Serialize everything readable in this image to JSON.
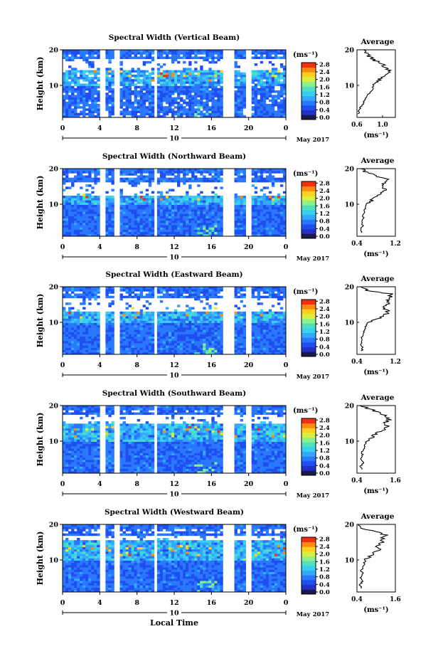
{
  "colors": {
    "colormap": [
      "#1a1a4a",
      "#2030c8",
      "#1f4ff0",
      "#2a78ff",
      "#34a8ff",
      "#38d0f0",
      "#4ee0c0",
      "#8ff08a",
      "#d8f040",
      "#ffd020",
      "#ff8a10",
      "#f03010"
    ],
    "line": "#000000",
    "gap": "#ffffff"
  },
  "shared": {
    "x_ticks": [
      "0",
      "4",
      "8",
      "12",
      "16",
      "20",
      "0"
    ],
    "x_ticks_overlap": [
      "0",
      "4",
      "8",
      "12",
      "16",
      "20",
      "0"
    ],
    "y_ticks": [
      "20",
      "10"
    ],
    "ylabel": "Height (km)",
    "colorbar_unit": "(ms⁻¹)",
    "colorbar_ticks": [
      "2.8",
      "2.4",
      "2.0",
      "1.6",
      "1.2",
      "0.8",
      "0.4",
      "0.0"
    ],
    "date_day": "10",
    "date_label": "May 2017",
    "avg_title": "Average",
    "avg_xlabel": "(ms⁻¹)",
    "xlabel": "Local Time"
  },
  "chart_data": [
    {
      "type": "heatmap",
      "title": "Spectral Width (Vertical Beam)",
      "xlabel": "",
      "ylabel": "Height (km)",
      "xlim": [
        0,
        24
      ],
      "ylim": [
        1,
        20
      ],
      "clim": [
        0.0,
        3.0
      ],
      "gaps_hours": [
        4.3,
        5.9,
        10.0,
        17.6,
        18.2,
        20.0
      ],
      "upper_gap_km": [
        14.0,
        17.5
      ],
      "average_profile": {
        "xlim": [
          0.6,
          1.2
        ],
        "xticks": [
          "0.6",
          "1.0"
        ],
        "height_km": [
          2,
          3,
          4,
          5,
          6,
          7,
          8,
          9,
          10,
          11,
          12,
          13,
          14,
          15,
          16,
          17,
          18,
          19,
          20
        ],
        "width": [
          0.62,
          0.64,
          0.66,
          0.7,
          0.72,
          0.76,
          0.8,
          0.84,
          0.86,
          0.92,
          0.98,
          1.02,
          1.12,
          1.04,
          1.0,
          0.88,
          0.8,
          0.78,
          0.7
        ]
      }
    },
    {
      "type": "heatmap",
      "title": "Spectral Width (Northward Beam)",
      "xlabel": "",
      "ylabel": "Height (km)",
      "xlim": [
        0,
        24
      ],
      "ylim": [
        1,
        20
      ],
      "clim": [
        0.0,
        3.0
      ],
      "gaps_hours": [
        4.3,
        5.9,
        10.0,
        17.6,
        18.2,
        20.0
      ],
      "upper_gap_km": [
        12.5,
        16.5
      ],
      "average_profile": {
        "xlim": [
          0.4,
          1.2
        ],
        "xticks": [
          "0.4",
          "1.2"
        ],
        "height_km": [
          2,
          3,
          4,
          5,
          6,
          7,
          8,
          9,
          10,
          11,
          12,
          13,
          14,
          15,
          16,
          17,
          18,
          19,
          20
        ],
        "width": [
          0.5,
          0.48,
          0.52,
          0.5,
          0.54,
          0.52,
          0.56,
          0.58,
          0.6,
          0.7,
          0.78,
          0.92,
          0.98,
          0.9,
          0.96,
          1.02,
          0.8,
          0.6,
          0.48
        ]
      }
    },
    {
      "type": "heatmap",
      "title": "Spectral Width (Eastward Beam)",
      "xlabel": "",
      "ylabel": "Height (km)",
      "xlim": [
        0,
        24
      ],
      "ylim": [
        1,
        20
      ],
      "clim": [
        0.0,
        3.0
      ],
      "gaps_hours": [
        4.3,
        5.9,
        10.0,
        17.6,
        18.2,
        20.0
      ],
      "upper_gap_km": [
        13.0,
        17.0
      ],
      "average_profile": {
        "xlim": [
          0.4,
          1.2
        ],
        "xticks": [
          "0.4",
          "1.2"
        ],
        "height_km": [
          2,
          3,
          4,
          5,
          6,
          7,
          8,
          9,
          10,
          11,
          12,
          13,
          14,
          15,
          16,
          17,
          18,
          19,
          20
        ],
        "width": [
          0.5,
          0.52,
          0.48,
          0.52,
          0.5,
          0.54,
          0.56,
          0.58,
          0.62,
          0.8,
          1.0,
          1.04,
          0.96,
          1.02,
          1.06,
          1.08,
          1.12,
          0.6,
          0.48
        ]
      }
    },
    {
      "type": "heatmap",
      "title": "Spectral Width (Southward Beam)",
      "xlabel": "",
      "ylabel": "Height (km)",
      "xlim": [
        0,
        24
      ],
      "ylim": [
        1,
        20
      ],
      "clim": [
        0.0,
        3.0
      ],
      "gaps_hours": [
        4.3,
        5.9,
        10.0,
        17.6,
        18.2,
        20.0
      ],
      "upper_gap_km": [
        15.0,
        17.5
      ],
      "average_profile": {
        "xlim": [
          0.4,
          1.6
        ],
        "xticks": [
          "0.4",
          "1.6"
        ],
        "height_km": [
          2,
          3,
          4,
          5,
          6,
          7,
          8,
          9,
          10,
          11,
          12,
          13,
          14,
          15,
          16,
          17,
          18,
          19,
          20
        ],
        "width": [
          0.56,
          0.52,
          0.6,
          0.54,
          0.58,
          0.56,
          0.62,
          0.64,
          0.7,
          0.86,
          1.0,
          1.2,
          1.36,
          1.24,
          1.4,
          1.3,
          1.1,
          0.8,
          0.5
        ]
      }
    },
    {
      "type": "heatmap",
      "title": "Spectral Width (Westward Beam)",
      "xlabel": "Local Time",
      "ylabel": "Height (km)",
      "xlim": [
        0,
        24
      ],
      "ylim": [
        1,
        20
      ],
      "clim": [
        0.0,
        3.0
      ],
      "gaps_hours": [
        4.3,
        5.9,
        10.0,
        17.6,
        18.2,
        20.0
      ],
      "upper_gap_km": [
        15.5,
        17.0
      ],
      "average_profile": {
        "xlim": [
          0.4,
          1.6
        ],
        "xticks": [
          "0.4",
          "1.6"
        ],
        "height_km": [
          2,
          3,
          4,
          5,
          6,
          7,
          8,
          9,
          10,
          11,
          12,
          13,
          14,
          15,
          16,
          17,
          18,
          19,
          20
        ],
        "width": [
          0.54,
          0.5,
          0.56,
          0.52,
          0.58,
          0.54,
          0.6,
          0.62,
          0.66,
          0.8,
          0.94,
          1.1,
          1.02,
          1.16,
          1.2,
          1.3,
          1.0,
          0.56,
          0.46
        ]
      }
    }
  ]
}
